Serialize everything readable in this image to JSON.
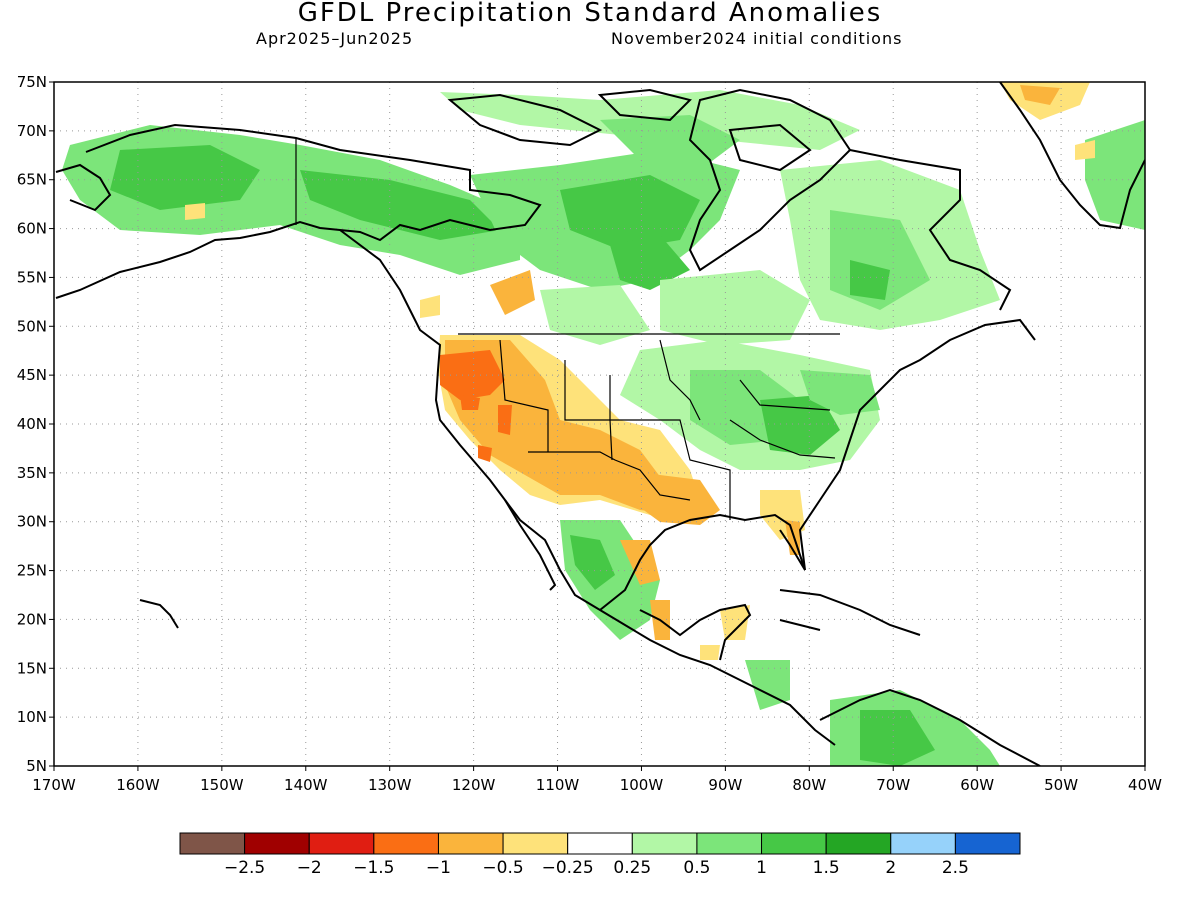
{
  "title": "GFDL Precipitation Standard Anomalies",
  "subtitle_left": "Apr2025–Jun2025",
  "subtitle_right": "November2024 initial conditions",
  "axes": {
    "lat_labels": [
      "75N",
      "70N",
      "65N",
      "60N",
      "55N",
      "50N",
      "45N",
      "40N",
      "35N",
      "30N",
      "25N",
      "20N",
      "15N",
      "10N",
      "5N"
    ],
    "lon_labels": [
      "170W",
      "160W",
      "150W",
      "140W",
      "130W",
      "120W",
      "110W",
      "100W",
      "90W",
      "80W",
      "70W",
      "60W",
      "50W",
      "40W"
    ],
    "lat_range": [
      5,
      75
    ],
    "lon_range": [
      -170,
      -40
    ],
    "grid": "dotted"
  },
  "colorbar": {
    "colors": [
      "#7f5548",
      "#a00000",
      "#e01e12",
      "#fa6e14",
      "#fab43c",
      "#fee27a",
      "#ffffff",
      "#b2f7a6",
      "#7ce57a",
      "#46c846",
      "#24a624",
      "#96d2fa",
      "#1664d2"
    ],
    "labels": [
      "−2.5",
      "−2",
      "−1.5",
      "−1",
      "−0.5",
      "−0.25",
      "0.25",
      "0.5",
      "1",
      "1.5",
      "2",
      "2.5"
    ]
  },
  "colors": {
    "green_light": "#b2f7a6",
    "green_mid": "#7ce57a",
    "green_dark": "#46c846",
    "yellow": "#fee27a",
    "orange_light": "#fab43c",
    "orange": "#fa6e14"
  }
}
